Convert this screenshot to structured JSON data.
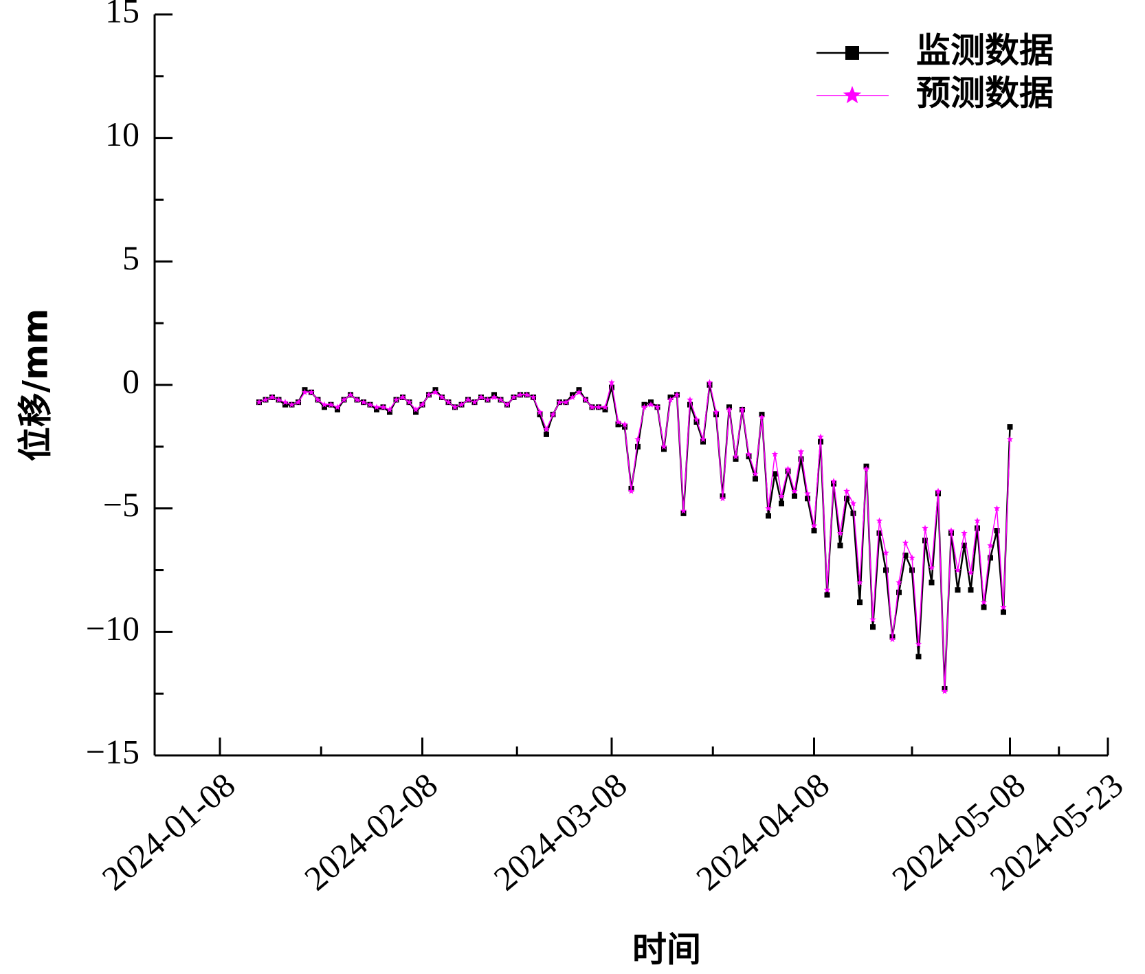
{
  "chart_data": {
    "type": "line",
    "x": [
      "2024-01-14",
      "2024-01-15",
      "2024-01-16",
      "2024-01-17",
      "2024-01-18",
      "2024-01-19",
      "2024-01-20",
      "2024-01-21",
      "2024-01-22",
      "2024-01-23",
      "2024-01-24",
      "2024-01-25",
      "2024-01-26",
      "2024-01-27",
      "2024-01-28",
      "2024-01-29",
      "2024-01-30",
      "2024-01-31",
      "2024-02-01",
      "2024-02-02",
      "2024-02-03",
      "2024-02-04",
      "2024-02-05",
      "2024-02-06",
      "2024-02-07",
      "2024-02-08",
      "2024-02-09",
      "2024-02-10",
      "2024-02-11",
      "2024-02-12",
      "2024-02-13",
      "2024-02-14",
      "2024-02-15",
      "2024-02-16",
      "2024-02-17",
      "2024-02-18",
      "2024-02-19",
      "2024-02-20",
      "2024-02-21",
      "2024-02-22",
      "2024-02-23",
      "2024-02-24",
      "2024-02-25",
      "2024-02-26",
      "2024-02-27",
      "2024-02-28",
      "2024-02-29",
      "2024-03-01",
      "2024-03-02",
      "2024-03-03",
      "2024-03-04",
      "2024-03-05",
      "2024-03-06",
      "2024-03-07",
      "2024-03-08",
      "2024-03-09",
      "2024-03-10",
      "2024-03-11",
      "2024-03-12",
      "2024-03-13",
      "2024-03-14",
      "2024-03-15",
      "2024-03-16",
      "2024-03-17",
      "2024-03-18",
      "2024-03-19",
      "2024-03-20",
      "2024-03-21",
      "2024-03-22",
      "2024-03-23",
      "2024-03-24",
      "2024-03-25",
      "2024-03-26",
      "2024-03-27",
      "2024-03-28",
      "2024-03-29",
      "2024-03-30",
      "2024-03-31",
      "2024-04-01",
      "2024-04-02",
      "2024-04-03",
      "2024-04-04",
      "2024-04-05",
      "2024-04-06",
      "2024-04-07",
      "2024-04-08",
      "2024-04-09",
      "2024-04-10",
      "2024-04-11",
      "2024-04-12",
      "2024-04-13",
      "2024-04-14",
      "2024-04-15",
      "2024-04-16",
      "2024-04-17",
      "2024-04-18",
      "2024-04-19",
      "2024-04-20",
      "2024-04-21",
      "2024-04-22",
      "2024-04-23",
      "2024-04-24",
      "2024-04-25",
      "2024-04-26",
      "2024-04-27",
      "2024-04-28",
      "2024-04-29",
      "2024-04-30",
      "2024-05-01",
      "2024-05-02",
      "2024-05-03",
      "2024-05-04",
      "2024-05-05",
      "2024-05-06",
      "2024-05-07",
      "2024-05-08"
    ],
    "series": [
      {
        "name": "监测数据",
        "color": "#000000",
        "marker": "square",
        "values": [
          -0.7,
          -0.6,
          -0.5,
          -0.6,
          -0.8,
          -0.8,
          -0.7,
          -0.2,
          -0.3,
          -0.6,
          -0.9,
          -0.8,
          -1.0,
          -0.6,
          -0.4,
          -0.6,
          -0.7,
          -0.8,
          -1.0,
          -0.9,
          -1.1,
          -0.6,
          -0.5,
          -0.7,
          -1.1,
          -0.8,
          -0.4,
          -0.2,
          -0.5,
          -0.7,
          -0.9,
          -0.8,
          -0.6,
          -0.7,
          -0.5,
          -0.6,
          -0.4,
          -0.6,
          -0.8,
          -0.5,
          -0.4,
          -0.4,
          -0.5,
          -1.2,
          -2.0,
          -1.2,
          -0.7,
          -0.7,
          -0.4,
          -0.2,
          -0.6,
          -0.9,
          -0.9,
          -1.0,
          -0.1,
          -1.6,
          -1.7,
          -4.2,
          -2.5,
          -0.8,
          -0.7,
          -0.9,
          -2.6,
          -0.5,
          -0.4,
          -5.2,
          -0.8,
          -1.5,
          -2.3,
          0.0,
          -1.2,
          -4.5,
          -0.9,
          -3.0,
          -1.0,
          -2.9,
          -3.8,
          -1.2,
          -5.3,
          -3.6,
          -4.8,
          -3.5,
          -4.5,
          -3.0,
          -4.6,
          -5.9,
          -2.3,
          -8.5,
          -4.0,
          -6.5,
          -4.6,
          -5.2,
          -8.8,
          -3.3,
          -9.8,
          -6.0,
          -7.5,
          -10.2,
          -8.4,
          -6.9,
          -7.5,
          -11.0,
          -6.3,
          -8.0,
          -4.4,
          -12.3,
          -6.0,
          -8.3,
          -6.5,
          -8.3,
          -5.8,
          -9.0,
          -7.0,
          -5.9,
          -9.2,
          -1.7
        ]
      },
      {
        "name": "预测数据",
        "color": "#ff00ff",
        "marker": "star",
        "values": [
          -0.7,
          -0.6,
          -0.5,
          -0.6,
          -0.7,
          -0.8,
          -0.7,
          -0.3,
          -0.3,
          -0.6,
          -0.8,
          -0.8,
          -0.9,
          -0.6,
          -0.4,
          -0.6,
          -0.7,
          -0.8,
          -0.9,
          -0.9,
          -1.0,
          -0.6,
          -0.5,
          -0.7,
          -1.0,
          -0.8,
          -0.4,
          -0.3,
          -0.5,
          -0.7,
          -0.9,
          -0.8,
          -0.6,
          -0.7,
          -0.5,
          -0.6,
          -0.5,
          -0.6,
          -0.8,
          -0.5,
          -0.4,
          -0.4,
          -0.5,
          -1.1,
          -1.8,
          -1.2,
          -0.7,
          -0.7,
          -0.5,
          -0.3,
          -0.6,
          -0.9,
          -0.9,
          -0.9,
          0.1,
          -1.5,
          -1.6,
          -4.3,
          -2.2,
          -0.9,
          -0.8,
          -0.9,
          -2.5,
          -0.6,
          -0.4,
          -5.1,
          -0.6,
          -1.4,
          -2.2,
          0.1,
          -1.1,
          -4.6,
          -1.0,
          -2.9,
          -1.0,
          -2.8,
          -3.6,
          -1.3,
          -5.0,
          -2.8,
          -4.5,
          -3.4,
          -4.3,
          -2.7,
          -4.4,
          -5.7,
          -2.1,
          -8.3,
          -3.9,
          -6.0,
          -4.3,
          -4.8,
          -8.0,
          -3.4,
          -9.5,
          -5.5,
          -6.8,
          -10.3,
          -8.0,
          -6.4,
          -7.0,
          -10.5,
          -5.8,
          -7.4,
          -4.3,
          -12.4,
          -5.9,
          -7.5,
          -6.0,
          -7.6,
          -5.5,
          -8.8,
          -6.5,
          -5.0,
          -9.0,
          -2.2
        ]
      }
    ],
    "x_label": "时间",
    "y_label": "位移/mm",
    "xlim": [
      "2023-12-29",
      "2024-05-23"
    ],
    "xticks": [
      "2024-01-08",
      "2024-02-08",
      "2024-03-08",
      "2024-04-08",
      "2024-05-08",
      "2024-05-23"
    ],
    "ylim": [
      -15,
      15
    ],
    "yticks": [
      {
        "value": -15,
        "label": "−15"
      },
      {
        "value": -10,
        "label": "−10"
      },
      {
        "value": -5,
        "label": "−5"
      },
      0,
      5,
      10,
      15
    ],
    "grid": false,
    "legend": "top-right"
  }
}
